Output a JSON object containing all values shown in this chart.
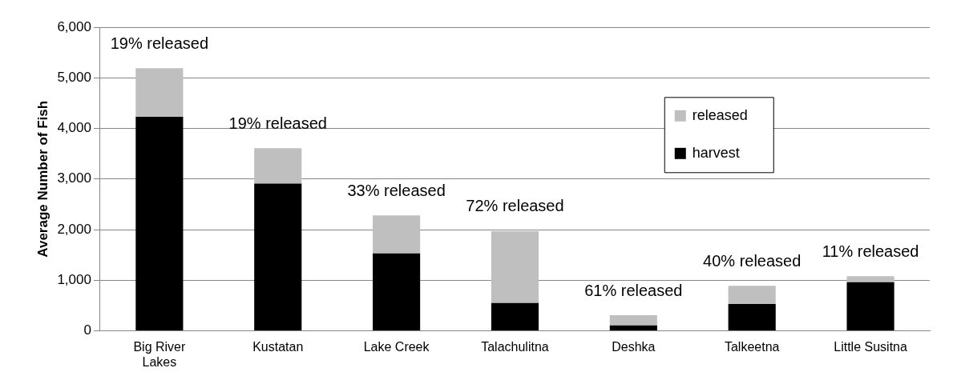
{
  "chart_data": {
    "type": "bar",
    "stacked": true,
    "ylabel": "Average Number of Fish",
    "categories": [
      "Big River Lakes",
      "Kustatan",
      "Lake Creek",
      "Talachulitna",
      "Deshka",
      "Talkeetna",
      "Little Susitna"
    ],
    "series": [
      {
        "name": "harvest",
        "color": "#000000",
        "values": [
          4230,
          2910,
          1530,
          550,
          110,
          530,
          960
        ]
      },
      {
        "name": "released",
        "color": "#bfbfbf",
        "values": [
          960,
          700,
          750,
          1420,
          200,
          360,
          120
        ]
      }
    ],
    "ylim": [
      0,
      6000
    ],
    "yticks": [
      {
        "value": 0,
        "label": "0"
      },
      {
        "value": 1000,
        "label": "1,000"
      },
      {
        "value": 2000,
        "label": "2,000"
      },
      {
        "value": 3000,
        "label": "3,000"
      },
      {
        "value": 4000,
        "label": "4,000"
      },
      {
        "value": 5000,
        "label": "5,000"
      },
      {
        "value": 6000,
        "label": "6,000"
      }
    ],
    "grid": "y",
    "legend": "right",
    "annotations": [
      "19% released",
      "19% released",
      "33% released",
      "72% released",
      "61% released",
      "40% released",
      "11% released"
    ]
  }
}
